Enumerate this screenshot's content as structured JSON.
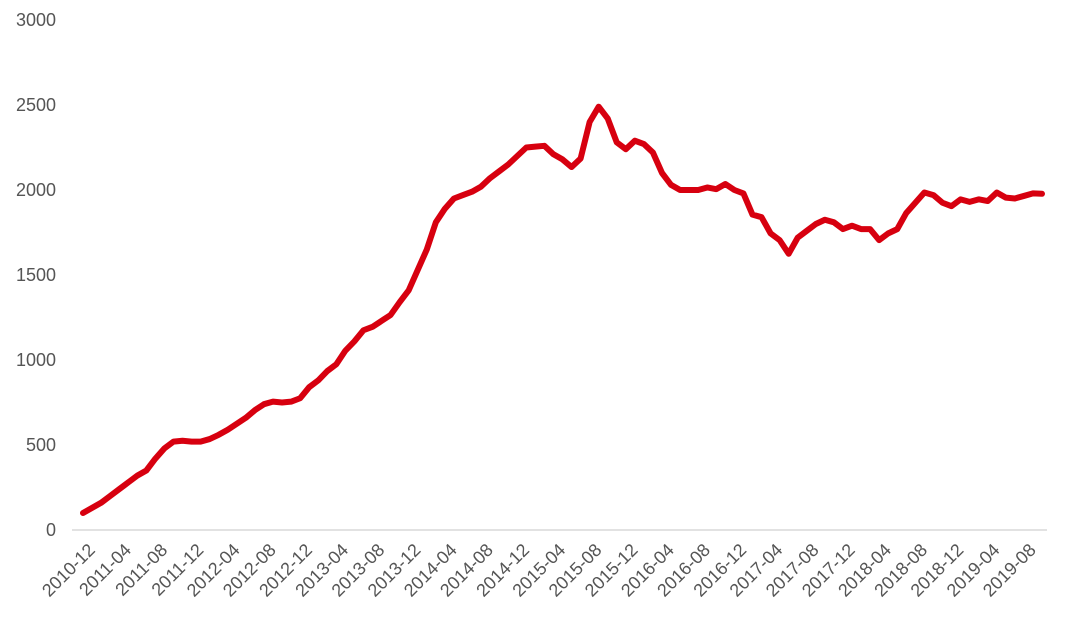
{
  "chart_data": {
    "type": "line",
    "title": "",
    "xlabel": "",
    "ylabel": "",
    "ylim": [
      0,
      3000
    ],
    "yticks": [
      0,
      500,
      1000,
      1500,
      2000,
      2500,
      3000
    ],
    "grid": false,
    "legend": "none",
    "x_tick_labels": [
      "2010-12",
      "2011-04",
      "2011-08",
      "2011-12",
      "2012-04",
      "2012-08",
      "2012-12",
      "2013-04",
      "2013-08",
      "2013-12",
      "2014-04",
      "2014-08",
      "2014-12",
      "2015-04",
      "2015-08",
      "2015-12",
      "2016-04",
      "2016-08",
      "2016-12",
      "2017-04",
      "2017-08",
      "2017-12",
      "2018-04",
      "2018-08",
      "2018-12",
      "2019-04",
      "2019-08"
    ],
    "series": [
      {
        "color": "#d7000f",
        "values": [
          100,
          130,
          160,
          200,
          240,
          280,
          320,
          350,
          420,
          480,
          520,
          525,
          520,
          520,
          535,
          560,
          590,
          625,
          660,
          705,
          740,
          755,
          750,
          755,
          775,
          840,
          880,
          935,
          975,
          1055,
          1110,
          1175,
          1195,
          1230,
          1265,
          1340,
          1410,
          1530,
          1650,
          1810,
          1890,
          1950,
          1970,
          1990,
          2020,
          2070,
          2110,
          2150,
          2200,
          2250,
          2255,
          2260,
          2210,
          2180,
          2135,
          2185,
          2400,
          2490,
          2420,
          2280,
          2240,
          2290,
          2270,
          2220,
          2100,
          2030,
          2000,
          2000,
          2000,
          2015,
          2005,
          2035,
          2000,
          1980,
          1855,
          1840,
          1745,
          1705,
          1625,
          1720,
          1760,
          1800,
          1825,
          1810,
          1770,
          1790,
          1770,
          1770,
          1705,
          1745,
          1770,
          1865,
          1925,
          1985,
          1970,
          1925,
          1905,
          1945,
          1930,
          1945,
          1935,
          1985,
          1955,
          1950,
          1965,
          1980,
          1978
        ]
      }
    ]
  }
}
